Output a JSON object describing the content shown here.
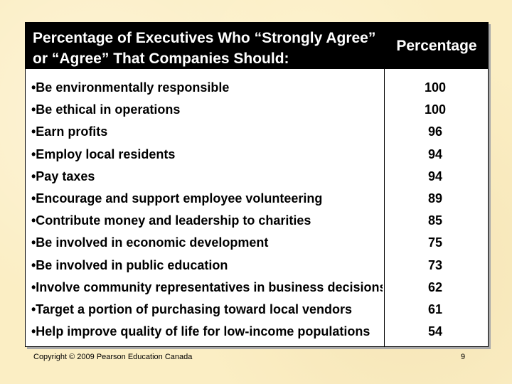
{
  "table": {
    "title": "Percentage of Executives Who “Strongly Agree” or “Agree” That Companies Should:",
    "percentage_header": "Percentage",
    "rows": [
      {
        "label": "•Be environmentally responsible",
        "value": "100"
      },
      {
        "label": "•Be ethical in operations",
        "value": "100"
      },
      {
        "label": "•Earn profits",
        "value": "96"
      },
      {
        "label": "•Employ local residents",
        "value": "94"
      },
      {
        "label": "•Pay taxes",
        "value": "94"
      },
      {
        "label": "•Encourage and support employee volunteering",
        "value": "89"
      },
      {
        "label": "•Contribute money and leadership to charities",
        "value": "85"
      },
      {
        "label": "•Be involved in economic development",
        "value": "75"
      },
      {
        "label": "•Be involved in public education",
        "value": "73"
      },
      {
        "label": "•Involve community representatives in business decisions",
        "value": "62"
      },
      {
        "label": "•Target a portion of purchasing toward local vendors",
        "value": "61"
      },
      {
        "label": "•Help improve quality of life for low-income populations",
        "value": "54"
      }
    ]
  },
  "footer": {
    "copyright": "Copyright © 2009 Pearson Education Canada",
    "page_number": "9"
  }
}
